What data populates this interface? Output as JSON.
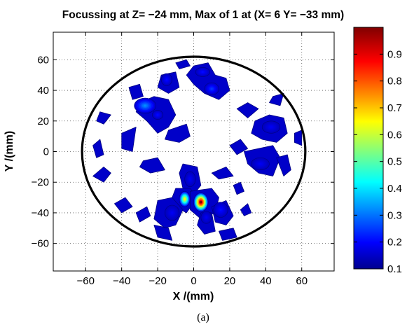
{
  "chart_data": {
    "type": "heatmap",
    "title": "Focussing at Z= −24 mm, Max of 1 at (X= 6 Y= −33 mm)",
    "xlabel": "X /(mm)",
    "ylabel": "Y /(mm)",
    "xlim": [
      -78,
      78
    ],
    "ylim": [
      -78,
      78
    ],
    "xticks": [
      -60,
      -40,
      -20,
      0,
      20,
      40,
      60
    ],
    "yticks": [
      -60,
      -40,
      -20,
      0,
      20,
      40,
      60
    ],
    "xtick_labels": [
      "−60",
      "−40",
      "−20",
      "0",
      "20",
      "40",
      "60"
    ],
    "ytick_labels": [
      "−60",
      "−40",
      "−20",
      "0",
      "20",
      "40",
      "60"
    ],
    "grid": "dotted",
    "colormap": "jet",
    "colorbar": {
      "min": 0.1,
      "max": 1.0,
      "ticks": [
        0.1,
        0.2,
        0.3,
        0.4,
        0.5,
        0.6,
        0.7,
        0.8,
        0.9
      ],
      "tick_labels": [
        "0.1",
        "0.2",
        "0.3",
        "0.4",
        "0.5",
        "0.6",
        "0.7",
        "0.8",
        "0.9"
      ]
    },
    "boundary_circle": {
      "cx": 0,
      "cy": 0,
      "r": 62
    },
    "peak": {
      "x": 6,
      "y": -33,
      "value": 1.0
    },
    "blobs": [
      {
        "x": 4,
        "y": -33,
        "rx": 4,
        "ry": 6,
        "value": 1.0
      },
      {
        "x": -5,
        "y": -31,
        "rx": 3,
        "ry": 5,
        "value": 0.65
      },
      {
        "x": -27,
        "y": 30,
        "rx": 6,
        "ry": 5,
        "value": 0.3
      },
      {
        "x": 10,
        "y": 41,
        "rx": 4,
        "ry": 4,
        "value": 0.22
      },
      {
        "x": -20,
        "y": 24,
        "rx": 3,
        "ry": 3,
        "value": 0.18
      },
      {
        "x": 5,
        "y": 52,
        "rx": 4,
        "ry": 3,
        "value": 0.18
      },
      {
        "x": -15,
        "y": 47,
        "rx": 3,
        "ry": 4,
        "value": 0.18
      },
      {
        "x": 15,
        "y": -38,
        "rx": 4,
        "ry": 5,
        "value": 0.18
      },
      {
        "x": -12,
        "y": -40,
        "rx": 4,
        "ry": 5,
        "value": 0.16
      },
      {
        "x": 7,
        "y": -43,
        "rx": 3,
        "ry": 4,
        "value": 0.16
      },
      {
        "x": -2,
        "y": -18,
        "rx": 3,
        "ry": 5,
        "value": 0.16
      },
      {
        "x": 43,
        "y": 16,
        "rx": 5,
        "ry": 4,
        "value": 0.16
      },
      {
        "x": 37,
        "y": -8,
        "rx": 5,
        "ry": 4,
        "value": 0.16
      }
    ],
    "patches": [
      {
        "value": 0.15,
        "points": [
          [
            -30,
            32
          ],
          [
            -22,
            36
          ],
          [
            -14,
            34
          ],
          [
            -10,
            24
          ],
          [
            -14,
            16
          ],
          [
            -20,
            12
          ],
          [
            -26,
            20
          ],
          [
            -32,
            26
          ]
        ]
      },
      {
        "value": 0.15,
        "points": [
          [
            -14,
            14
          ],
          [
            -4,
            18
          ],
          [
            -2,
            10
          ],
          [
            -8,
            6
          ],
          [
            -16,
            8
          ]
        ]
      },
      {
        "value": 0.15,
        "points": [
          [
            -18,
            50
          ],
          [
            -10,
            52
          ],
          [
            -8,
            42
          ],
          [
            -14,
            38
          ],
          [
            -20,
            42
          ]
        ]
      },
      {
        "value": 0.15,
        "points": [
          [
            -4,
            50
          ],
          [
            0,
            56
          ],
          [
            8,
            58
          ],
          [
            12,
            50
          ],
          [
            18,
            48
          ],
          [
            20,
            40
          ],
          [
            14,
            34
          ],
          [
            6,
            38
          ],
          [
            0,
            44
          ]
        ]
      },
      {
        "value": 0.15,
        "points": [
          [
            -36,
            42
          ],
          [
            -30,
            44
          ],
          [
            -28,
            36
          ],
          [
            -34,
            34
          ]
        ]
      },
      {
        "value": 0.15,
        "points": [
          [
            -40,
            12
          ],
          [
            -32,
            16
          ],
          [
            -34,
            0
          ],
          [
            -40,
            2
          ]
        ]
      },
      {
        "value": 0.15,
        "points": [
          [
            -52,
            26
          ],
          [
            -46,
            24
          ],
          [
            -50,
            18
          ],
          [
            -54,
            20
          ]
        ]
      },
      {
        "value": 0.15,
        "points": [
          [
            -50,
            -10
          ],
          [
            -46,
            -14
          ],
          [
            -50,
            -20
          ],
          [
            -56,
            -16
          ]
        ]
      },
      {
        "value": 0.15,
        "points": [
          [
            -28,
            -6
          ],
          [
            -20,
            -4
          ],
          [
            -16,
            -12
          ],
          [
            -24,
            -14
          ],
          [
            -30,
            -10
          ]
        ]
      },
      {
        "value": 0.15,
        "points": [
          [
            -6,
            -8
          ],
          [
            2,
            -10
          ],
          [
            4,
            -22
          ],
          [
            0,
            -28
          ],
          [
            -6,
            -24
          ],
          [
            -8,
            -14
          ]
        ]
      },
      {
        "value": 0.15,
        "points": [
          [
            -10,
            -24
          ],
          [
            -2,
            -24
          ],
          [
            2,
            -30
          ],
          [
            -4,
            -40
          ],
          [
            -10,
            -36
          ],
          [
            -12,
            -30
          ]
        ]
      },
      {
        "value": 0.15,
        "points": [
          [
            -2,
            -26
          ],
          [
            10,
            -24
          ],
          [
            14,
            -30
          ],
          [
            12,
            -40
          ],
          [
            4,
            -44
          ],
          [
            -2,
            -38
          ]
        ]
      },
      {
        "value": 0.15,
        "points": [
          [
            -20,
            -32
          ],
          [
            -12,
            -30
          ],
          [
            -6,
            -38
          ],
          [
            -10,
            -48
          ],
          [
            -16,
            -50
          ],
          [
            -22,
            -44
          ]
        ]
      },
      {
        "value": 0.15,
        "points": [
          [
            10,
            -36
          ],
          [
            18,
            -32
          ],
          [
            22,
            -42
          ],
          [
            18,
            -48
          ],
          [
            12,
            -46
          ]
        ]
      },
      {
        "value": 0.15,
        "points": [
          [
            4,
            -40
          ],
          [
            10,
            -40
          ],
          [
            12,
            -52
          ],
          [
            6,
            -54
          ],
          [
            2,
            -48
          ]
        ]
      },
      {
        "value": 0.15,
        "points": [
          [
            -22,
            -48
          ],
          [
            -14,
            -50
          ],
          [
            -12,
            -58
          ],
          [
            -20,
            -56
          ]
        ]
      },
      {
        "value": 0.15,
        "points": [
          [
            26,
            -38
          ],
          [
            30,
            -34
          ],
          [
            32,
            -40
          ],
          [
            28,
            -42
          ]
        ]
      },
      {
        "value": 0.15,
        "points": [
          [
            24,
            28
          ],
          [
            30,
            32
          ],
          [
            36,
            28
          ],
          [
            30,
            22
          ]
        ]
      },
      {
        "value": 0.15,
        "points": [
          [
            44,
            36
          ],
          [
            50,
            38
          ],
          [
            48,
            30
          ],
          [
            42,
            32
          ]
        ]
      },
      {
        "value": 0.15,
        "points": [
          [
            34,
            20
          ],
          [
            42,
            24
          ],
          [
            50,
            22
          ],
          [
            52,
            12
          ],
          [
            46,
            6
          ],
          [
            38,
            8
          ],
          [
            32,
            12
          ]
        ]
      },
      {
        "value": 0.15,
        "points": [
          [
            20,
            4
          ],
          [
            26,
            8
          ],
          [
            30,
            2
          ],
          [
            24,
            -2
          ]
        ]
      },
      {
        "value": 0.15,
        "points": [
          [
            28,
            0
          ],
          [
            44,
            4
          ],
          [
            48,
            -4
          ],
          [
            44,
            -16
          ],
          [
            36,
            -14
          ],
          [
            30,
            -8
          ]
        ]
      },
      {
        "value": 0.15,
        "points": [
          [
            46,
            -4
          ],
          [
            52,
            -2
          ],
          [
            54,
            -12
          ],
          [
            50,
            -16
          ]
        ]
      },
      {
        "value": 0.15,
        "points": [
          [
            10,
            -14
          ],
          [
            18,
            -10
          ],
          [
            22,
            -16
          ],
          [
            14,
            -18
          ]
        ]
      },
      {
        "value": 0.15,
        "points": [
          [
            -44,
            -34
          ],
          [
            -38,
            -30
          ],
          [
            -34,
            -36
          ],
          [
            -40,
            -40
          ]
        ]
      },
      {
        "value": 0.15,
        "points": [
          [
            -32,
            -40
          ],
          [
            -26,
            -36
          ],
          [
            -24,
            -42
          ],
          [
            -30,
            -46
          ]
        ]
      },
      {
        "value": 0.15,
        "points": [
          [
            22,
            -22
          ],
          [
            26,
            -20
          ],
          [
            28,
            -26
          ],
          [
            24,
            -28
          ]
        ]
      },
      {
        "value": 0.15,
        "points": [
          [
            -10,
            58
          ],
          [
            -4,
            60
          ],
          [
            -2,
            56
          ],
          [
            -8,
            54
          ]
        ]
      },
      {
        "value": 0.15,
        "points": [
          [
            14,
            -52
          ],
          [
            22,
            -50
          ],
          [
            24,
            -56
          ],
          [
            16,
            -58
          ]
        ]
      },
      {
        "value": 0.15,
        "points": [
          [
            -56,
            4
          ],
          [
            -52,
            8
          ],
          [
            -50,
            -2
          ],
          [
            -54,
            -4
          ]
        ]
      },
      {
        "value": 0.15,
        "points": [
          [
            56,
            12
          ],
          [
            60,
            14
          ],
          [
            60,
            4
          ],
          [
            56,
            6
          ]
        ]
      }
    ]
  },
  "caption": "(a)"
}
